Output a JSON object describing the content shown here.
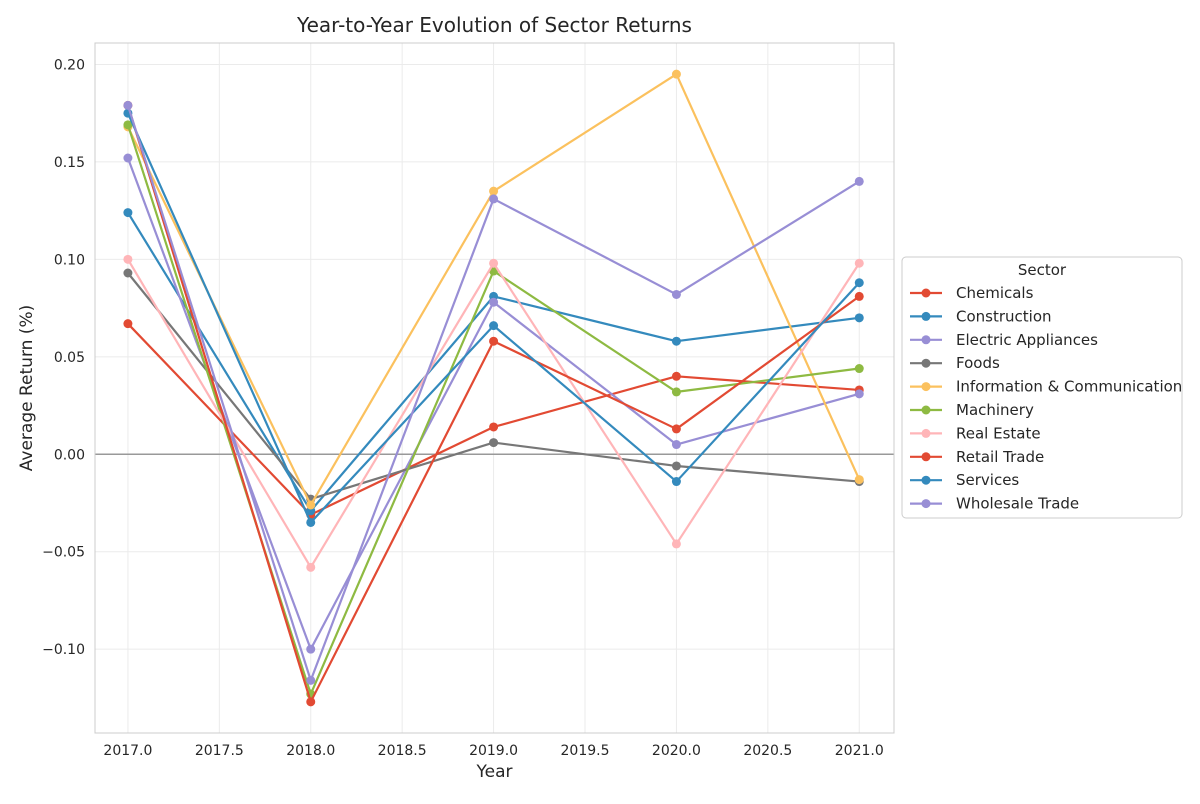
{
  "chart_data": {
    "type": "line",
    "title": "Year-to-Year Evolution of Sector Returns",
    "xlabel": "Year",
    "ylabel": "Average Return (%)",
    "x": [
      2017,
      2018,
      2019,
      2020,
      2021
    ],
    "xlim": [
      2016.82,
      2021.19
    ],
    "ylim": [
      -0.143,
      0.211
    ],
    "xticks": [
      2017.0,
      2017.5,
      2018.0,
      2018.5,
      2019.0,
      2019.5,
      2020.0,
      2020.5,
      2021.0
    ],
    "xtick_labels": [
      "2017.0",
      "2017.5",
      "2018.0",
      "2018.5",
      "2019.0",
      "2019.5",
      "2020.0",
      "2020.5",
      "2021.0"
    ],
    "yticks": [
      -0.1,
      -0.05,
      0.0,
      0.05,
      0.1,
      0.15,
      0.2
    ],
    "ytick_labels": [
      "−0.10",
      "−0.05",
      "0.00",
      "0.05",
      "0.10",
      "0.15",
      "0.20"
    ],
    "grid": true,
    "zero_line": true,
    "legend": {
      "title": "Sector",
      "placement": "outside-right"
    },
    "series": [
      {
        "name": "Chemicals",
        "color": "#E24A33",
        "values": [
          0.067,
          -0.031,
          0.014,
          0.04,
          0.033
        ]
      },
      {
        "name": "Construction",
        "color": "#348ABD",
        "values": [
          0.124,
          -0.029,
          0.081,
          0.058,
          0.07
        ]
      },
      {
        "name": "Electric Appliances",
        "color": "#988ED5",
        "values": [
          0.152,
          -0.1,
          0.078,
          0.005,
          0.031
        ]
      },
      {
        "name": "Foods",
        "color": "#777777",
        "values": [
          0.093,
          -0.023,
          0.006,
          -0.006,
          -0.014
        ]
      },
      {
        "name": "Information & Communication",
        "color": "#FBC15E",
        "values": [
          0.168,
          -0.026,
          0.135,
          0.195,
          -0.013
        ]
      },
      {
        "name": "Machinery",
        "color": "#8EBA42",
        "values": [
          0.169,
          -0.123,
          0.094,
          0.032,
          0.044
        ]
      },
      {
        "name": "Real Estate",
        "color": "#FFB5B8",
        "values": [
          0.1,
          -0.058,
          0.098,
          -0.046,
          0.098
        ]
      },
      {
        "name": "Retail Trade",
        "color": "#E24A33",
        "values": [
          0.179,
          -0.127,
          0.058,
          0.013,
          0.081
        ]
      },
      {
        "name": "Services",
        "color": "#348ABD",
        "values": [
          0.175,
          -0.035,
          0.066,
          -0.014,
          0.088
        ]
      },
      {
        "name": "Wholesale Trade",
        "color": "#988ED5",
        "values": [
          0.179,
          -0.116,
          0.131,
          0.082,
          0.14
        ]
      }
    ]
  }
}
